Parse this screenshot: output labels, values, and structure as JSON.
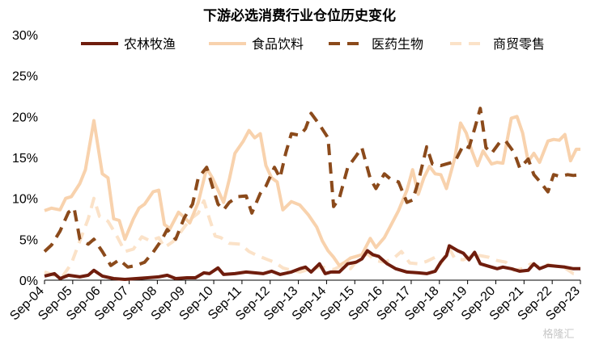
{
  "chart_data": {
    "type": "line",
    "title": "下游必选消费行业仓位历史变化",
    "xlabel": "",
    "ylabel": "",
    "ylim": [
      0,
      30
    ],
    "yticks": [
      "0%",
      "5%",
      "10%",
      "15%",
      "20%",
      "25%",
      "30%"
    ],
    "categories": [
      "Sep-04",
      "Sep-05",
      "Sep-06",
      "Sep-07",
      "Sep-08",
      "Sep-09",
      "Sep-10",
      "Sep-11",
      "Sep-12",
      "Sep-13",
      "Sep-14",
      "Sep-15",
      "Sep-16",
      "Sep-17",
      "Sep-18",
      "Sep-19",
      "Sep-20",
      "Sep-21",
      "Sep-22",
      "Sep-23"
    ],
    "x_start": 2004.75,
    "x_end": 2023.75,
    "legend_position": "top",
    "grid": false,
    "series": [
      {
        "name": "农林牧渔",
        "color": "#6f1d0d",
        "dash": "solid",
        "width": 4,
        "points": [
          [
            2004.75,
            0.5
          ],
          [
            2005.1,
            0.8
          ],
          [
            2005.3,
            0.2
          ],
          [
            2005.6,
            0.6
          ],
          [
            2006.0,
            0.4
          ],
          [
            2006.3,
            0.6
          ],
          [
            2006.5,
            1.2
          ],
          [
            2006.8,
            0.5
          ],
          [
            2007.2,
            0.2
          ],
          [
            2007.6,
            0.1
          ],
          [
            2008.0,
            0.2
          ],
          [
            2008.4,
            0.3
          ],
          [
            2008.8,
            0.4
          ],
          [
            2009.1,
            0.6
          ],
          [
            2009.4,
            0.2
          ],
          [
            2009.8,
            0.3
          ],
          [
            2010.1,
            0.3
          ],
          [
            2010.4,
            0.9
          ],
          [
            2010.6,
            0.8
          ],
          [
            2010.9,
            1.5
          ],
          [
            2011.1,
            0.7
          ],
          [
            2011.5,
            0.8
          ],
          [
            2011.9,
            1.0
          ],
          [
            2012.2,
            0.9
          ],
          [
            2012.5,
            0.8
          ],
          [
            2012.8,
            1.1
          ],
          [
            2013.1,
            0.7
          ],
          [
            2013.5,
            1.0
          ],
          [
            2013.8,
            1.4
          ],
          [
            2014.0,
            1.6
          ],
          [
            2014.2,
            1.0
          ],
          [
            2014.5,
            2.0
          ],
          [
            2014.7,
            0.8
          ],
          [
            2014.9,
            1.0
          ],
          [
            2015.2,
            1.0
          ],
          [
            2015.5,
            2.0
          ],
          [
            2015.8,
            2.2
          ],
          [
            2016.0,
            2.6
          ],
          [
            2016.2,
            3.6
          ],
          [
            2016.4,
            3.1
          ],
          [
            2016.6,
            2.9
          ],
          [
            2016.9,
            2.0
          ],
          [
            2017.2,
            1.4
          ],
          [
            2017.6,
            1.0
          ],
          [
            2018.0,
            0.9
          ],
          [
            2018.3,
            0.8
          ],
          [
            2018.6,
            1.1
          ],
          [
            2018.8,
            2.2
          ],
          [
            2019.0,
            3.0
          ],
          [
            2019.1,
            4.2
          ],
          [
            2019.4,
            3.6
          ],
          [
            2019.6,
            3.3
          ],
          [
            2019.8,
            2.5
          ],
          [
            2020.0,
            3.4
          ],
          [
            2020.2,
            2.0
          ],
          [
            2020.5,
            1.7
          ],
          [
            2020.8,
            1.4
          ],
          [
            2021.0,
            1.6
          ],
          [
            2021.3,
            1.4
          ],
          [
            2021.6,
            1.1
          ],
          [
            2021.9,
            1.2
          ],
          [
            2022.1,
            2.0
          ],
          [
            2022.3,
            1.4
          ],
          [
            2022.6,
            1.8
          ],
          [
            2022.9,
            1.7
          ],
          [
            2023.2,
            1.6
          ],
          [
            2023.5,
            1.4
          ],
          [
            2023.75,
            1.4
          ]
        ]
      },
      {
        "name": "食品饮料",
        "color": "#f8d2ad",
        "dash": "solid",
        "width": 4,
        "points": [
          [
            2004.75,
            8.5
          ],
          [
            2005.0,
            8.8
          ],
          [
            2005.3,
            8.6
          ],
          [
            2005.5,
            10.0
          ],
          [
            2005.7,
            10.2
          ],
          [
            2006.0,
            11.8
          ],
          [
            2006.2,
            13.5
          ],
          [
            2006.5,
            19.5
          ],
          [
            2006.8,
            13.0
          ],
          [
            2007.0,
            12.5
          ],
          [
            2007.2,
            7.5
          ],
          [
            2007.4,
            7.3
          ],
          [
            2007.6,
            5.0
          ],
          [
            2007.9,
            7.5
          ],
          [
            2008.1,
            8.8
          ],
          [
            2008.3,
            9.3
          ],
          [
            2008.6,
            10.8
          ],
          [
            2008.8,
            11.0
          ],
          [
            2009.0,
            6.8
          ],
          [
            2009.2,
            6.3
          ],
          [
            2009.5,
            8.3
          ],
          [
            2009.7,
            7.7
          ],
          [
            2009.9,
            7.0
          ],
          [
            2010.2,
            9.5
          ],
          [
            2010.5,
            13.7
          ],
          [
            2010.7,
            12.5
          ],
          [
            2010.9,
            11.0
          ],
          [
            2011.1,
            9.5
          ],
          [
            2011.3,
            12.3
          ],
          [
            2011.5,
            15.5
          ],
          [
            2011.8,
            17.0
          ],
          [
            2012.0,
            18.3
          ],
          [
            2012.2,
            17.4
          ],
          [
            2012.4,
            17.9
          ],
          [
            2012.6,
            14.0
          ],
          [
            2012.8,
            12.5
          ],
          [
            2013.0,
            12.0
          ],
          [
            2013.2,
            8.6
          ],
          [
            2013.5,
            9.6
          ],
          [
            2013.8,
            9.2
          ],
          [
            2014.1,
            8.0
          ],
          [
            2014.4,
            6.5
          ],
          [
            2014.6,
            4.8
          ],
          [
            2014.8,
            3.6
          ],
          [
            2015.0,
            2.8
          ],
          [
            2015.2,
            1.8
          ],
          [
            2015.4,
            2.2
          ],
          [
            2015.6,
            2.7
          ],
          [
            2016.0,
            3.1
          ],
          [
            2016.3,
            5.1
          ],
          [
            2016.5,
            4.0
          ],
          [
            2016.8,
            5.2
          ],
          [
            2017.0,
            6.5
          ],
          [
            2017.3,
            8.5
          ],
          [
            2017.6,
            11.0
          ],
          [
            2017.8,
            13.5
          ],
          [
            2018.0,
            10.5
          ],
          [
            2018.2,
            12.5
          ],
          [
            2018.4,
            13.9
          ],
          [
            2018.6,
            13.0
          ],
          [
            2018.8,
            12.9
          ],
          [
            2019.0,
            11.2
          ],
          [
            2019.3,
            15.0
          ],
          [
            2019.5,
            19.2
          ],
          [
            2019.7,
            18.0
          ],
          [
            2019.9,
            15.8
          ],
          [
            2020.1,
            14.0
          ],
          [
            2020.3,
            15.8
          ],
          [
            2020.6,
            14.2
          ],
          [
            2020.8,
            14.4
          ],
          [
            2021.0,
            14.3
          ],
          [
            2021.3,
            19.8
          ],
          [
            2021.5,
            20.0
          ],
          [
            2021.7,
            18.0
          ],
          [
            2021.9,
            14.5
          ],
          [
            2022.1,
            15.5
          ],
          [
            2022.3,
            14.4
          ],
          [
            2022.6,
            17.0
          ],
          [
            2022.8,
            17.2
          ],
          [
            2023.0,
            17.1
          ],
          [
            2023.2,
            17.8
          ],
          [
            2023.4,
            14.6
          ],
          [
            2023.6,
            16.0
          ],
          [
            2023.75,
            16.0
          ]
        ]
      },
      {
        "name": "医药生物",
        "color": "#8b4a1b",
        "dash": "dash",
        "width": 4,
        "points": [
          [
            2004.75,
            3.5
          ],
          [
            2005.0,
            4.3
          ],
          [
            2005.3,
            6.0
          ],
          [
            2005.6,
            8.3
          ],
          [
            2005.8,
            8.8
          ],
          [
            2006.0,
            5.0
          ],
          [
            2006.3,
            4.4
          ],
          [
            2006.5,
            5.0
          ],
          [
            2006.8,
            3.5
          ],
          [
            2007.1,
            1.8
          ],
          [
            2007.4,
            2.5
          ],
          [
            2007.7,
            1.6
          ],
          [
            2008.0,
            1.8
          ],
          [
            2008.3,
            2.2
          ],
          [
            2008.6,
            3.4
          ],
          [
            2008.9,
            4.9
          ],
          [
            2009.1,
            6.2
          ],
          [
            2009.4,
            5.0
          ],
          [
            2009.7,
            7.6
          ],
          [
            2010.0,
            9.3
          ],
          [
            2010.2,
            12.5
          ],
          [
            2010.5,
            13.8
          ],
          [
            2010.7,
            11.5
          ],
          [
            2010.9,
            9.3
          ],
          [
            2011.1,
            8.6
          ],
          [
            2011.3,
            9.5
          ],
          [
            2011.6,
            10.2
          ],
          [
            2011.9,
            10.3
          ],
          [
            2012.1,
            8.2
          ],
          [
            2012.4,
            10.6
          ],
          [
            2012.6,
            11.5
          ],
          [
            2012.9,
            13.8
          ],
          [
            2013.1,
            12.5
          ],
          [
            2013.3,
            15.5
          ],
          [
            2013.5,
            17.9
          ],
          [
            2013.8,
            17.7
          ],
          [
            2014.0,
            18.5
          ],
          [
            2014.2,
            20.4
          ],
          [
            2014.5,
            19.0
          ],
          [
            2014.8,
            17.4
          ],
          [
            2015.0,
            9.0
          ],
          [
            2015.2,
            10.0
          ],
          [
            2015.5,
            13.8
          ],
          [
            2015.8,
            15.2
          ],
          [
            2016.0,
            16.2
          ],
          [
            2016.3,
            12.4
          ],
          [
            2016.5,
            11.2
          ],
          [
            2016.8,
            13.0
          ],
          [
            2017.0,
            12.4
          ],
          [
            2017.3,
            12.0
          ],
          [
            2017.6,
            9.5
          ],
          [
            2017.8,
            9.8
          ],
          [
            2018.0,
            12.0
          ],
          [
            2018.3,
            16.3
          ],
          [
            2018.5,
            14.2
          ],
          [
            2018.8,
            14.0
          ],
          [
            2019.0,
            14.2
          ],
          [
            2019.3,
            14.5
          ],
          [
            2019.6,
            16.5
          ],
          [
            2019.8,
            16.2
          ],
          [
            2020.0,
            18.5
          ],
          [
            2020.2,
            21.0
          ],
          [
            2020.4,
            16.2
          ],
          [
            2020.6,
            15.5
          ],
          [
            2020.9,
            16.9
          ],
          [
            2021.1,
            17.0
          ],
          [
            2021.4,
            15.6
          ],
          [
            2021.6,
            13.7
          ],
          [
            2021.9,
            14.8
          ],
          [
            2022.1,
            12.9
          ],
          [
            2022.3,
            12.1
          ],
          [
            2022.6,
            10.8
          ],
          [
            2022.8,
            12.9
          ],
          [
            2023.0,
            12.7
          ],
          [
            2023.3,
            12.9
          ],
          [
            2023.5,
            12.8
          ],
          [
            2023.75,
            12.9
          ]
        ]
      },
      {
        "name": "商贸零售",
        "color": "#fbe2c8",
        "dash": "dash",
        "width": 4,
        "points": [
          [
            2004.75,
            1.0
          ],
          [
            2005.1,
            0.6
          ],
          [
            2005.4,
            0.5
          ],
          [
            2005.7,
            2.0
          ],
          [
            2006.0,
            4.8
          ],
          [
            2006.3,
            7.5
          ],
          [
            2006.5,
            10.0
          ],
          [
            2006.7,
            7.8
          ],
          [
            2007.0,
            7.2
          ],
          [
            2007.3,
            5.5
          ],
          [
            2007.6,
            3.5
          ],
          [
            2007.9,
            3.8
          ],
          [
            2008.2,
            5.3
          ],
          [
            2008.5,
            4.8
          ],
          [
            2008.8,
            5.2
          ],
          [
            2009.0,
            4.0
          ],
          [
            2009.3,
            4.7
          ],
          [
            2009.6,
            6.0
          ],
          [
            2009.9,
            7.4
          ],
          [
            2010.2,
            8.2
          ],
          [
            2010.4,
            9.7
          ],
          [
            2010.6,
            7.5
          ],
          [
            2010.8,
            5.4
          ],
          [
            2011.0,
            5.2
          ],
          [
            2011.3,
            4.5
          ],
          [
            2011.7,
            4.4
          ],
          [
            2012.0,
            3.5
          ],
          [
            2012.3,
            3.0
          ],
          [
            2012.6,
            2.6
          ],
          [
            2012.9,
            2.2
          ],
          [
            2013.2,
            1.5
          ],
          [
            2013.5,
            1.2
          ],
          [
            2013.8,
            1.0
          ],
          [
            2014.2,
            1.4
          ],
          [
            2014.6,
            1.6
          ],
          [
            2015.0,
            1.3
          ],
          [
            2015.3,
            1.8
          ],
          [
            2015.6,
            1.4
          ],
          [
            2015.9,
            2.7
          ],
          [
            2016.2,
            3.2
          ],
          [
            2016.5,
            2.4
          ],
          [
            2016.8,
            2.2
          ],
          [
            2017.1,
            2.6
          ],
          [
            2017.4,
            3.5
          ],
          [
            2017.7,
            2.1
          ],
          [
            2018.0,
            2.0
          ],
          [
            2018.3,
            2.3
          ],
          [
            2018.6,
            2.8
          ],
          [
            2018.8,
            2.0
          ],
          [
            2019.1,
            3.9
          ],
          [
            2019.3,
            2.6
          ],
          [
            2019.6,
            2.5
          ],
          [
            2019.9,
            3.0
          ],
          [
            2020.2,
            3.0
          ],
          [
            2020.5,
            2.8
          ],
          [
            2020.8,
            2.4
          ],
          [
            2021.1,
            2.2
          ],
          [
            2021.4,
            1.2
          ],
          [
            2021.7,
            1.4
          ],
          [
            2022.0,
            2.0
          ],
          [
            2022.3,
            1.6
          ],
          [
            2022.6,
            1.9
          ],
          [
            2022.9,
            1.7
          ],
          [
            2023.2,
            1.5
          ],
          [
            2023.5,
            0.8
          ],
          [
            2023.75,
            0.7
          ]
        ]
      }
    ],
    "watermark": "格隆汇"
  }
}
